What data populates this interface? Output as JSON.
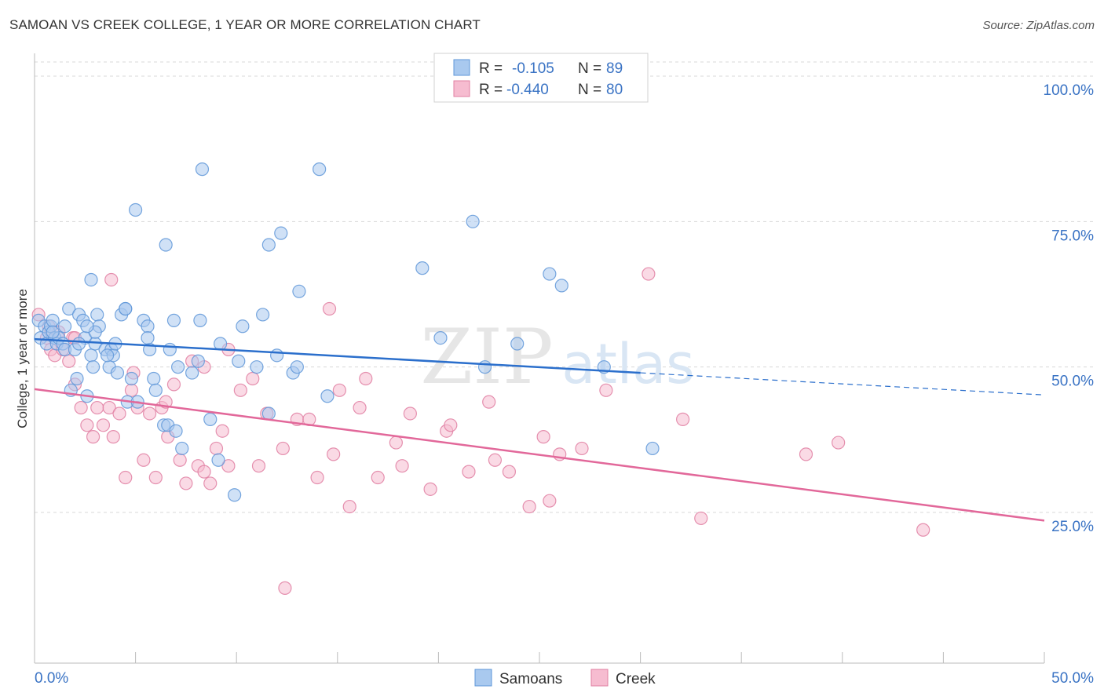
{
  "header": {
    "title": "SAMOAN VS CREEK COLLEGE, 1 YEAR OR MORE CORRELATION CHART",
    "source": "Source: ZipAtlas.com"
  },
  "watermark": {
    "zip": "ZIP",
    "atlas": "atlas"
  },
  "colors": {
    "samoans_fill": "#a9c9ef",
    "samoans_stroke": "#5f97d8",
    "samoans_line": "#2b6fcc",
    "creek_fill": "#f6bcd0",
    "creek_stroke": "#e07fa2",
    "creek_line": "#e2689a",
    "axis_label": "#3a73c4",
    "grid": "#d8d8d8"
  },
  "stats": [
    {
      "series": "samoans",
      "r_label": "R =",
      "r_value": "-0.105",
      "n_label": "N =",
      "n_value": "89"
    },
    {
      "series": "creek",
      "r_label": "R =",
      "r_value": "-0.440",
      "n_label": "N =",
      "n_value": "80"
    }
  ],
  "chart_data": {
    "type": "scatter",
    "title": "SAMOAN VS CREEK COLLEGE, 1 YEAR OR MORE CORRELATION CHART",
    "xlabel": "",
    "ylabel": "College, 1 year or more",
    "xlim": [
      0,
      50
    ],
    "ylim": [
      0,
      105
    ],
    "x_tick_labels": [
      "0.0%",
      "50.0%"
    ],
    "y_tick_labels": [
      "25.0%",
      "50.0%",
      "75.0%",
      "100.0%"
    ],
    "y_ticks": [
      25,
      50,
      75,
      100
    ],
    "grid": "horizontal dashed",
    "legend_position": "bottom-center",
    "series": [
      {
        "name": "Samoans",
        "trend": {
          "x0": 0,
          "y0": 54.8,
          "x1": 30,
          "y1": 49.0,
          "x_dash_end": 50,
          "y_dash_end": 45.2
        },
        "points": [
          [
            0.2,
            58
          ],
          [
            0.3,
            55
          ],
          [
            0.5,
            57
          ],
          [
            0.6,
            54
          ],
          [
            0.7,
            56
          ],
          [
            0.8,
            57
          ],
          [
            0.9,
            58
          ],
          [
            1.0,
            55
          ],
          [
            1.1,
            54
          ],
          [
            1.2,
            55
          ],
          [
            1.4,
            54
          ],
          [
            1.5,
            53
          ],
          [
            1.7,
            60
          ],
          [
            1.8,
            46
          ],
          [
            2.0,
            53
          ],
          [
            2.1,
            48
          ],
          [
            2.2,
            59
          ],
          [
            2.4,
            58
          ],
          [
            2.5,
            55
          ],
          [
            2.6,
            45
          ],
          [
            2.8,
            52
          ],
          [
            2.9,
            50
          ],
          [
            3.0,
            54
          ],
          [
            3.1,
            59
          ],
          [
            3.2,
            57
          ],
          [
            3.5,
            53
          ],
          [
            3.7,
            50
          ],
          [
            3.8,
            53
          ],
          [
            3.9,
            52
          ],
          [
            4.0,
            54
          ],
          [
            4.1,
            49
          ],
          [
            4.3,
            59
          ],
          [
            4.5,
            60
          ],
          [
            4.6,
            44
          ],
          [
            4.8,
            48
          ],
          [
            5.1,
            44
          ],
          [
            5.4,
            58
          ],
          [
            5.6,
            57
          ],
          [
            5.7,
            53
          ],
          [
            5.9,
            48
          ],
          [
            6.0,
            46
          ],
          [
            6.4,
            40
          ],
          [
            6.6,
            40
          ],
          [
            7.0,
            39
          ],
          [
            7.3,
            36
          ],
          [
            7.8,
            49
          ],
          [
            8.1,
            51
          ],
          [
            8.7,
            41
          ],
          [
            9.1,
            34
          ],
          [
            9.9,
            28
          ],
          [
            10.3,
            57
          ],
          [
            11.3,
            59
          ],
          [
            11.6,
            42
          ],
          [
            12.8,
            49
          ],
          [
            13.1,
            63
          ],
          [
            19.2,
            67
          ],
          [
            20.1,
            55
          ],
          [
            21.7,
            75
          ],
          [
            22.3,
            50
          ],
          [
            23.9,
            54
          ],
          [
            25.5,
            66
          ],
          [
            26.1,
            64
          ],
          [
            28.2,
            50
          ],
          [
            30.6,
            36
          ],
          [
            6.5,
            71
          ],
          [
            8.3,
            84
          ],
          [
            5.0,
            77
          ],
          [
            14.1,
            84
          ],
          [
            12.2,
            73
          ],
          [
            11.6,
            71
          ],
          [
            2.2,
            54
          ],
          [
            2.8,
            65
          ],
          [
            3.6,
            52
          ],
          [
            4.5,
            60
          ],
          [
            5.6,
            55
          ],
          [
            6.7,
            53
          ],
          [
            7.1,
            50
          ],
          [
            8.2,
            58
          ],
          [
            9.2,
            54
          ],
          [
            10.1,
            51
          ],
          [
            11.0,
            50
          ],
          [
            12.0,
            52
          ],
          [
            13.0,
            50
          ],
          [
            14.5,
            45
          ],
          [
            3.0,
            56
          ],
          [
            1.5,
            57
          ],
          [
            0.9,
            56
          ],
          [
            2.6,
            57
          ],
          [
            6.9,
            58
          ]
        ]
      },
      {
        "name": "Creek",
        "trend": {
          "x0": 0,
          "y0": 46.2,
          "x1": 50,
          "y1": 23.6
        },
        "points": [
          [
            0.2,
            59
          ],
          [
            0.6,
            55
          ],
          [
            0.8,
            53
          ],
          [
            1.0,
            52
          ],
          [
            1.2,
            56
          ],
          [
            1.4,
            53
          ],
          [
            1.7,
            51
          ],
          [
            2.0,
            47
          ],
          [
            2.3,
            43
          ],
          [
            2.6,
            40
          ],
          [
            2.9,
            38
          ],
          [
            3.1,
            43
          ],
          [
            3.4,
            40
          ],
          [
            3.7,
            43
          ],
          [
            3.9,
            38
          ],
          [
            4.2,
            42
          ],
          [
            4.5,
            31
          ],
          [
            4.8,
            46
          ],
          [
            5.1,
            43
          ],
          [
            5.4,
            34
          ],
          [
            5.7,
            42
          ],
          [
            6.0,
            31
          ],
          [
            6.3,
            43
          ],
          [
            6.6,
            38
          ],
          [
            6.9,
            47
          ],
          [
            7.2,
            34
          ],
          [
            7.5,
            30
          ],
          [
            7.8,
            51
          ],
          [
            8.1,
            33
          ],
          [
            8.4,
            32
          ],
          [
            8.7,
            30
          ],
          [
            9.0,
            36
          ],
          [
            9.3,
            39
          ],
          [
            9.6,
            33
          ],
          [
            10.2,
            46
          ],
          [
            11.1,
            33
          ],
          [
            11.5,
            42
          ],
          [
            12.3,
            36
          ],
          [
            13.0,
            41
          ],
          [
            14.0,
            31
          ],
          [
            14.8,
            35
          ],
          [
            15.6,
            26
          ],
          [
            16.1,
            43
          ],
          [
            17.0,
            31
          ],
          [
            17.9,
            37
          ],
          [
            18.6,
            42
          ],
          [
            19.6,
            29
          ],
          [
            20.4,
            39
          ],
          [
            21.5,
            32
          ],
          [
            22.5,
            44
          ],
          [
            23.5,
            32
          ],
          [
            24.5,
            26
          ],
          [
            25.5,
            27
          ],
          [
            26.0,
            35
          ],
          [
            28.3,
            46
          ],
          [
            30.4,
            66
          ],
          [
            32.1,
            41
          ],
          [
            33.0,
            24
          ],
          [
            38.2,
            35
          ],
          [
            39.8,
            37
          ],
          [
            44.0,
            22
          ],
          [
            12.4,
            12
          ],
          [
            14.6,
            60
          ],
          [
            3.8,
            65
          ],
          [
            1.9,
            55
          ],
          [
            4.9,
            49
          ],
          [
            6.5,
            44
          ],
          [
            8.4,
            50
          ],
          [
            9.6,
            53
          ],
          [
            10.8,
            48
          ],
          [
            13.6,
            41
          ],
          [
            15.1,
            46
          ],
          [
            16.4,
            48
          ],
          [
            18.2,
            33
          ],
          [
            20.6,
            40
          ],
          [
            22.8,
            34
          ],
          [
            25.2,
            38
          ],
          [
            27.1,
            36
          ],
          [
            2.0,
            55
          ],
          [
            0.7,
            57
          ]
        ]
      }
    ]
  }
}
